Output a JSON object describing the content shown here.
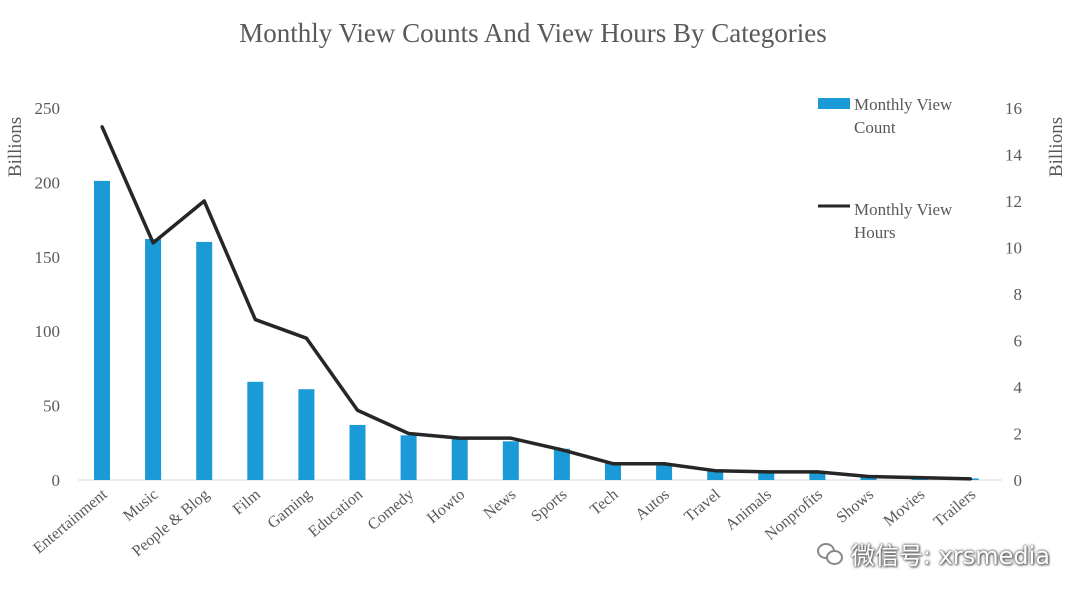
{
  "chart_data": {
    "type": "bar+line",
    "title": "Monthly View Counts And View Hours By Categories",
    "categories": [
      "Entertainment",
      "Music",
      "People & Blog",
      "Film",
      "Gaming",
      "Education",
      "Comedy",
      "Howto",
      "News",
      "Sports",
      "Tech",
      "Autos",
      "Travel",
      "Animals",
      "Nonprofits",
      "Shows",
      "Movies",
      "Trailers"
    ],
    "series": [
      {
        "name": "Monthly View Count",
        "type": "bar",
        "axis": "left",
        "color": "#1a9ad6",
        "values": [
          201,
          162,
          160,
          66,
          61,
          37,
          30,
          29,
          26,
          21,
          12,
          11,
          7,
          6,
          6,
          2,
          1,
          1
        ]
      },
      {
        "name": "Monthly View Hours",
        "type": "line",
        "axis": "right",
        "color": "#262626",
        "values": [
          15.2,
          10.2,
          12.0,
          6.9,
          6.1,
          3.0,
          2.0,
          1.8,
          1.8,
          1.3,
          0.7,
          0.7,
          0.4,
          0.35,
          0.35,
          0.15,
          0.1,
          0.05
        ]
      }
    ],
    "left_axis": {
      "label": "Billions",
      "min": 0,
      "max": 250,
      "ticks": [
        0,
        50,
        100,
        150,
        200,
        250
      ]
    },
    "right_axis": {
      "label": "Billions",
      "min": 0,
      "max": 16,
      "ticks": [
        0,
        2,
        4,
        6,
        8,
        10,
        12,
        14,
        16
      ]
    },
    "grid": false,
    "legend_position": "top-right"
  },
  "watermark": {
    "icon": "wechat-icon",
    "text": "微信号: xrsmedia"
  }
}
